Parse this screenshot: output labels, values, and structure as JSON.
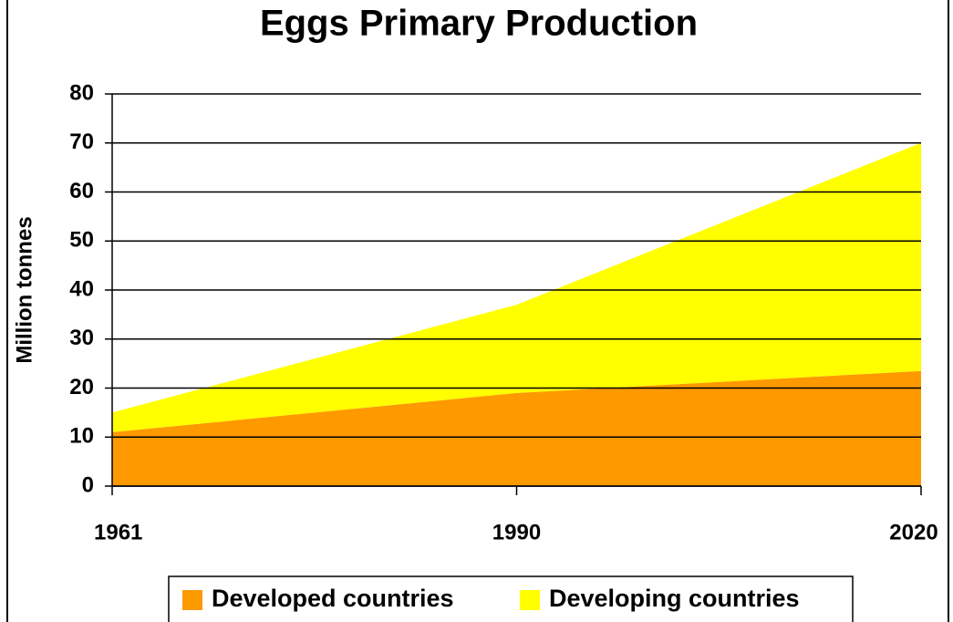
{
  "chart_data": {
    "type": "stacked_area",
    "title": "Eggs Primary Production",
    "ylabel": "Million tonnes",
    "categories": [
      "1961",
      "1990",
      "2020"
    ],
    "series": [
      {
        "name": "Developed countries",
        "color": "#ff9900",
        "values": [
          11,
          19,
          23.5
        ]
      },
      {
        "name": "Developing countries",
        "color": "#ffff00",
        "values": [
          4,
          18,
          46.5
        ]
      }
    ],
    "ylim": [
      0,
      80
    ],
    "yticks": [
      0,
      10,
      20,
      30,
      40,
      50,
      60,
      70,
      80
    ],
    "grid": true,
    "legend": "bottom"
  }
}
